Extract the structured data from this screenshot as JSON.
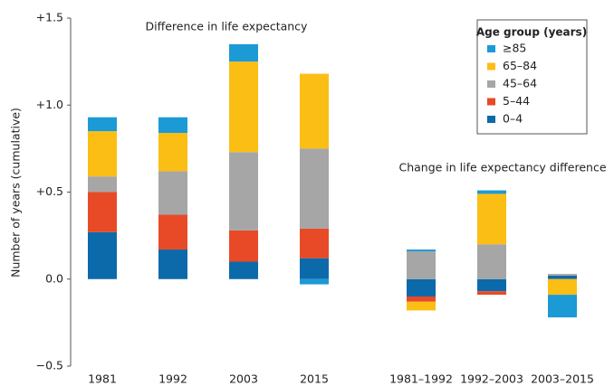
{
  "chart_data": {
    "type": "bar",
    "stacked": true,
    "annotations": [
      "Difference in life expectancy",
      "Change in life expectancy difference"
    ],
    "y_label": "Number of years (cumulative)",
    "legend_title": "Age group (years)",
    "legend_position": "upper right",
    "categories": [
      "1981",
      "1992",
      "2003",
      "2015",
      "1981–1992",
      "1992–2003",
      "2003–2015"
    ],
    "series": [
      {
        "name": "0–4",
        "color": "#0d6aaa",
        "values": [
          0.27,
          0.17,
          0.1,
          0.12,
          -0.1,
          -0.07,
          0.02
        ]
      },
      {
        "name": "5–44",
        "color": "#e84a27",
        "values": [
          0.23,
          0.2,
          0.18,
          0.17,
          -0.03,
          -0.02,
          0.0
        ]
      },
      {
        "name": "45–64",
        "color": "#a6a6a6",
        "values": [
          0.09,
          0.25,
          0.45,
          0.46,
          0.16,
          0.2,
          0.01
        ]
      },
      {
        "name": "65–84",
        "color": "#fbbe14",
        "values": [
          0.26,
          0.22,
          0.52,
          0.43,
          -0.05,
          0.29,
          -0.09
        ]
      },
      {
        "name": "≥85",
        "color": "#1b9ad6",
        "values": [
          0.08,
          0.09,
          0.1,
          -0.03,
          0.01,
          0.02,
          -0.13
        ]
      }
    ],
    "ylim": [
      -0.5,
      1.5
    ],
    "yticks": [
      {
        "value": -0.5,
        "label": "−0.5"
      },
      {
        "value": 0,
        "label": "0.0"
      },
      {
        "value": 0.5,
        "label": "+0.5"
      },
      {
        "value": 1,
        "label": "+1.0"
      },
      {
        "value": 1.5,
        "label": "+1.5"
      }
    ],
    "grid": false
  }
}
